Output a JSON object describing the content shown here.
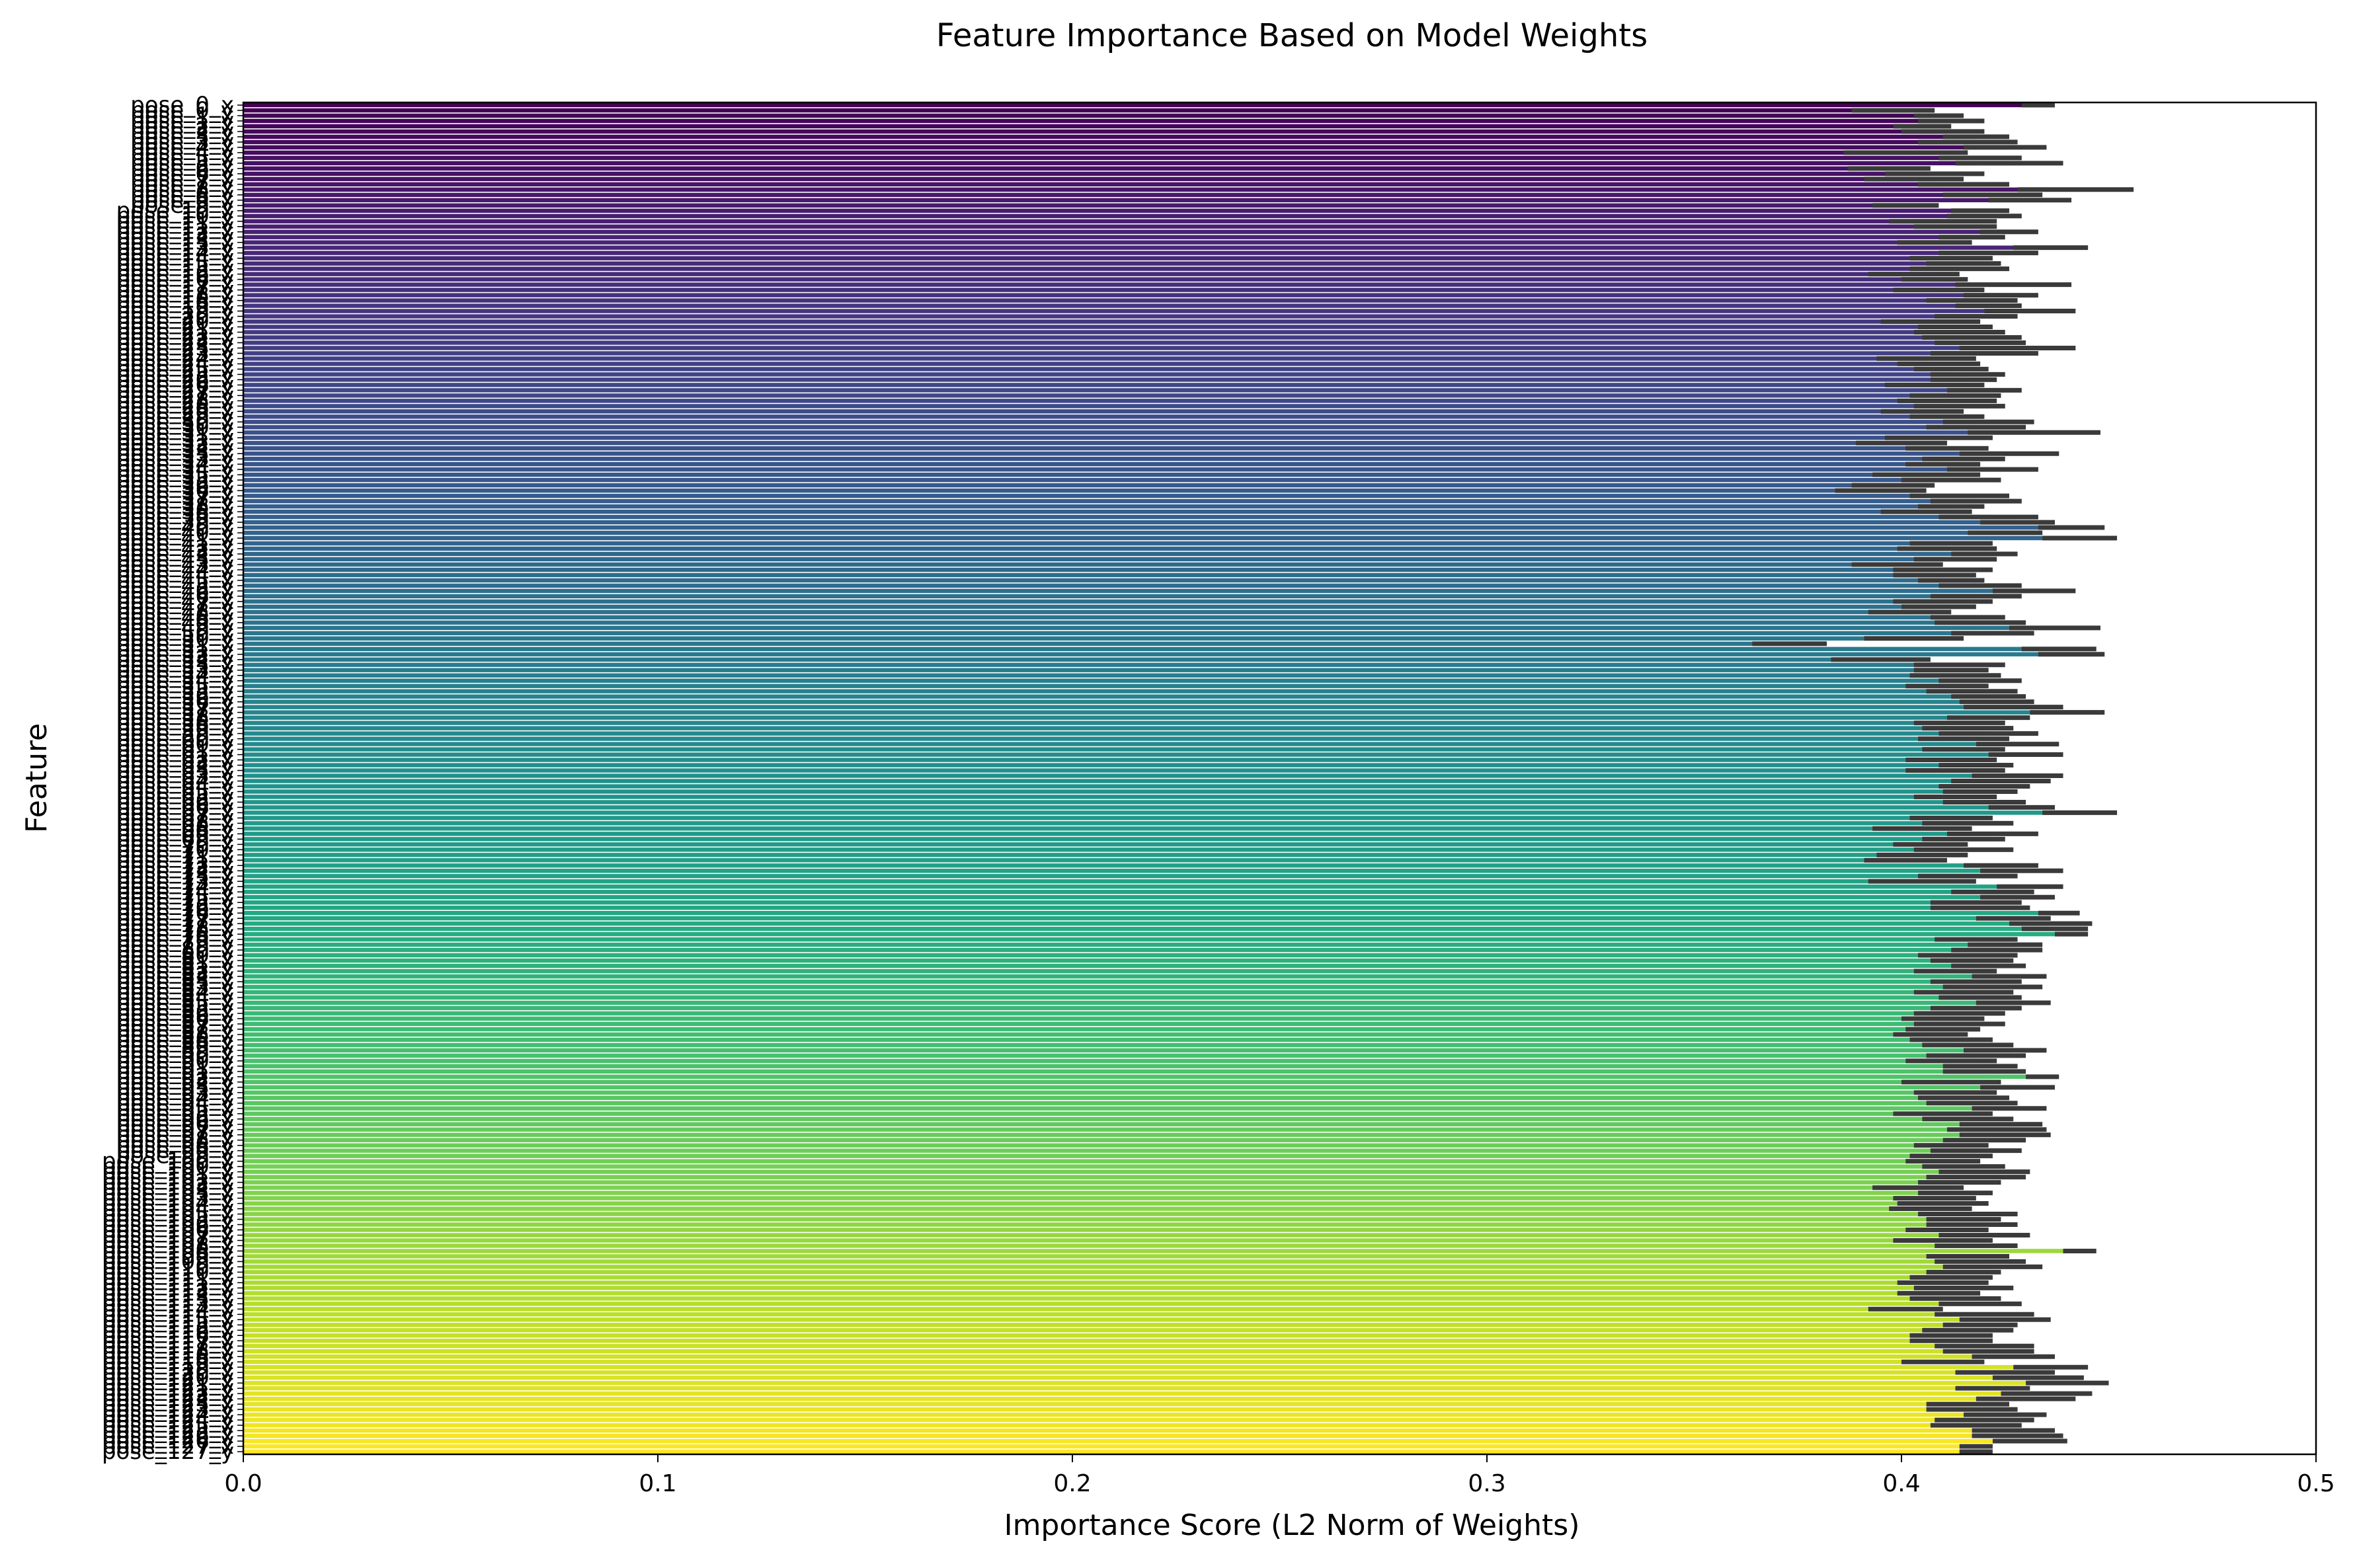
{
  "chart_data": {
    "type": "bar",
    "orientation": "horizontal",
    "title": "Feature Importance Based on Model Weights",
    "xlabel": "Importance Score (L2 Norm of Weights)",
    "ylabel": "Feature",
    "xlim": [
      0.0,
      0.5
    ],
    "xticks": [
      "0.0",
      "0.1",
      "0.2",
      "0.3",
      "0.4",
      "0.5"
    ],
    "grid": false,
    "colormap": "viridis",
    "error_bar_color": "#3a3a3a",
    "categories": [
      "pose_0_x",
      "pose_0_y",
      "pose_1_x",
      "pose_1_y",
      "pose_2_x",
      "pose_2_y",
      "pose_3_x",
      "pose_3_y",
      "pose_4_x",
      "pose_4_y",
      "pose_5_x",
      "pose_5_y",
      "pose_6_x",
      "pose_6_y",
      "pose_7_x",
      "pose_7_y",
      "pose_8_x",
      "pose_8_y",
      "pose_9_x",
      "pose_9_y",
      "pose_10_x",
      "pose_10_y",
      "pose_11_x",
      "pose_11_y",
      "pose_12_x",
      "pose_12_y",
      "pose_13_x",
      "pose_13_y",
      "pose_14_x",
      "pose_14_y",
      "pose_15_x",
      "pose_15_y",
      "pose_16_x",
      "pose_16_y",
      "pose_17_x",
      "pose_17_y",
      "pose_18_x",
      "pose_18_y",
      "pose_19_x",
      "pose_19_y",
      "pose_20_x",
      "pose_20_y",
      "pose_21_x",
      "pose_21_y",
      "pose_22_x",
      "pose_22_y",
      "pose_23_x",
      "pose_23_y",
      "pose_24_x",
      "pose_24_y",
      "pose_25_x",
      "pose_25_y",
      "pose_26_x",
      "pose_26_y",
      "pose_27_x",
      "pose_27_y",
      "pose_28_x",
      "pose_28_y",
      "pose_29_x",
      "pose_29_y",
      "pose_30_x",
      "pose_30_y",
      "pose_31_x",
      "pose_31_y",
      "pose_32_x",
      "pose_32_y",
      "pose_33_x",
      "pose_33_y",
      "pose_34_x",
      "pose_34_y",
      "pose_35_x",
      "pose_35_y",
      "pose_36_x",
      "pose_36_y",
      "pose_37_x",
      "pose_37_y",
      "pose_38_x",
      "pose_38_y",
      "pose_39_x",
      "pose_39_y",
      "pose_40_x",
      "pose_40_y",
      "pose_41_x",
      "pose_41_y",
      "pose_42_x",
      "pose_42_y",
      "pose_43_x",
      "pose_43_y",
      "pose_44_x",
      "pose_44_y",
      "pose_45_x",
      "pose_45_y",
      "pose_46_x",
      "pose_46_y",
      "pose_47_x",
      "pose_47_y",
      "pose_48_x",
      "pose_48_y",
      "pose_49_x",
      "pose_49_y",
      "pose_50_x",
      "pose_50_y",
      "pose_51_x",
      "pose_51_y",
      "pose_52_x",
      "pose_52_y",
      "pose_53_x",
      "pose_53_y",
      "pose_54_x",
      "pose_54_y",
      "pose_55_x",
      "pose_55_y",
      "pose_56_x",
      "pose_56_y",
      "pose_57_x",
      "pose_57_y",
      "pose_58_x",
      "pose_58_y",
      "pose_59_x",
      "pose_59_y",
      "pose_60_x",
      "pose_60_y",
      "pose_61_x",
      "pose_61_y",
      "pose_62_x",
      "pose_62_y",
      "pose_63_x",
      "pose_63_y",
      "pose_64_x",
      "pose_64_y",
      "pose_65_x",
      "pose_65_y",
      "pose_66_x",
      "pose_66_y",
      "pose_67_x",
      "pose_67_y",
      "pose_68_x",
      "pose_68_y",
      "pose_69_x",
      "pose_69_y",
      "pose_70_x",
      "pose_70_y",
      "pose_71_x",
      "pose_71_y",
      "pose_72_x",
      "pose_72_y",
      "pose_73_x",
      "pose_73_y",
      "pose_74_x",
      "pose_74_y",
      "pose_75_x",
      "pose_75_y",
      "pose_76_x",
      "pose_76_y",
      "pose_77_x",
      "pose_77_y",
      "pose_78_x",
      "pose_78_y",
      "pose_79_x",
      "pose_79_y",
      "pose_80_x",
      "pose_80_y",
      "pose_81_x",
      "pose_81_y",
      "pose_82_x",
      "pose_82_y",
      "pose_83_x",
      "pose_83_y",
      "pose_84_x",
      "pose_84_y",
      "pose_85_x",
      "pose_85_y",
      "pose_86_x",
      "pose_86_y",
      "pose_87_x",
      "pose_87_y",
      "pose_88_x",
      "pose_88_y",
      "pose_89_x",
      "pose_89_y",
      "pose_90_x",
      "pose_90_y",
      "pose_91_x",
      "pose_91_y",
      "pose_92_x",
      "pose_92_y",
      "pose_93_x",
      "pose_93_y",
      "pose_94_x",
      "pose_94_y",
      "pose_95_x",
      "pose_95_y",
      "pose_96_x",
      "pose_96_y",
      "pose_97_x",
      "pose_97_y",
      "pose_98_x",
      "pose_98_y",
      "pose_99_x",
      "pose_99_y",
      "pose_100_x",
      "pose_100_y",
      "pose_101_x",
      "pose_101_y",
      "pose_102_x",
      "pose_102_y",
      "pose_103_x",
      "pose_103_y",
      "pose_104_x",
      "pose_104_y",
      "pose_105_x",
      "pose_105_y",
      "pose_106_x",
      "pose_106_y",
      "pose_107_x",
      "pose_107_y",
      "pose_108_x",
      "pose_108_y",
      "pose_109_x",
      "pose_109_y",
      "pose_110_x",
      "pose_110_y",
      "pose_111_x",
      "pose_111_y",
      "pose_112_x",
      "pose_112_y",
      "pose_113_x",
      "pose_113_y",
      "pose_114_x",
      "pose_114_y",
      "pose_115_x",
      "pose_115_y",
      "pose_116_x",
      "pose_116_y",
      "pose_117_x",
      "pose_117_y",
      "pose_118_x",
      "pose_118_y",
      "pose_119_x",
      "pose_119_y",
      "pose_120_x",
      "pose_120_y",
      "pose_121_x",
      "pose_121_y",
      "pose_122_x",
      "pose_122_y",
      "pose_123_x",
      "pose_123_y",
      "pose_124_x",
      "pose_124_y",
      "pose_125_x",
      "pose_125_y",
      "pose_126_x",
      "pose_126_y",
      "pose_127_x",
      "pose_127_y"
    ],
    "values": [
      0.433,
      0.398,
      0.409,
      0.412,
      0.405,
      0.41,
      0.418,
      0.416,
      0.425,
      0.401,
      0.419,
      0.426,
      0.397,
      0.408,
      0.403,
      0.415,
      0.442,
      0.422,
      0.431,
      0.401,
      0.419,
      0.42,
      0.41,
      0.413,
      0.426,
      0.417,
      0.408,
      0.436,
      0.421,
      0.412,
      0.415,
      0.414,
      0.403,
      0.408,
      0.427,
      0.409,
      0.424,
      0.417,
      0.421,
      0.431,
      0.418,
      0.407,
      0.413,
      0.414,
      0.417,
      0.419,
      0.428,
      0.42,
      0.406,
      0.409,
      0.412,
      0.416,
      0.415,
      0.408,
      0.42,
      0.413,
      0.411,
      0.414,
      0.405,
      0.411,
      0.421,
      0.418,
      0.432,
      0.409,
      0.4,
      0.411,
      0.426,
      0.415,
      0.41,
      0.422,
      0.406,
      0.412,
      0.398,
      0.395,
      0.414,
      0.418,
      0.412,
      0.406,
      0.421,
      0.428,
      0.441,
      0.425,
      0.443,
      0.412,
      0.411,
      0.42,
      0.413,
      0.399,
      0.41,
      0.408,
      0.412,
      0.419,
      0.432,
      0.418,
      0.41,
      0.409,
      0.402,
      0.416,
      0.419,
      0.437,
      0.422,
      0.403,
      0.373,
      0.438,
      0.441,
      0.395,
      0.414,
      0.412,
      0.413,
      0.419,
      0.411,
      0.417,
      0.421,
      0.423,
      0.427,
      0.44,
      0.421,
      0.414,
      0.416,
      0.421,
      0.415,
      0.428,
      0.415,
      0.43,
      0.412,
      0.418,
      0.413,
      0.428,
      0.424,
      0.42,
      0.419,
      0.413,
      0.42,
      0.429,
      0.443,
      0.412,
      0.416,
      0.405,
      0.422,
      0.415,
      0.407,
      0.415,
      0.405,
      0.401,
      0.424,
      0.429,
      0.416,
      0.405,
      0.431,
      0.422,
      0.428,
      0.418,
      0.419,
      0.438,
      0.427,
      0.436,
      0.437,
      0.441,
      0.418,
      0.425,
      0.423,
      0.416,
      0.417,
      0.421,
      0.413,
      0.426,
      0.418,
      0.422,
      0.415,
      0.419,
      0.427,
      0.418,
      0.414,
      0.41,
      0.414,
      0.41,
      0.407,
      0.412,
      0.416,
      0.425,
      0.418,
      0.412,
      0.419,
      0.42,
      0.434,
      0.412,
      0.428,
      0.413,
      0.415,
      0.417,
      0.426,
      0.41,
      0.416,
      0.424,
      0.423,
      0.425,
      0.42,
      0.412,
      0.418,
      0.412,
      0.41,
      0.415,
      0.42,
      0.418,
      0.414,
      0.404,
      0.413,
      0.408,
      0.41,
      0.407,
      0.416,
      0.415,
      0.417,
      0.411,
      0.42,
      0.41,
      0.418,
      0.443,
      0.416,
      0.419,
      0.422,
      0.415,
      0.412,
      0.41,
      0.415,
      0.409,
      0.413,
      0.419,
      0.401,
      0.42,
      0.425,
      0.419,
      0.416,
      0.412,
      0.412,
      0.42,
      0.421,
      0.427,
      0.41,
      0.436,
      0.425,
      0.433,
      0.44,
      0.422,
      0.435,
      0.43,
      0.416,
      0.417,
      0.425,
      0.42,
      0.418,
      0.427,
      0.428,
      0.431,
      0.418,
      0.418
    ],
    "errors": [
      0.004,
      0.01,
      0.006,
      0.008,
      0.007,
      0.01,
      0.008,
      0.012,
      0.01,
      0.015,
      0.01,
      0.013,
      0.01,
      0.012,
      0.012,
      0.011,
      0.014,
      0.012,
      0.01,
      0.008,
      0.007,
      0.009,
      0.013,
      0.01,
      0.007,
      0.008,
      0.009,
      0.009,
      0.012,
      0.01,
      0.009,
      0.012,
      0.011,
      0.008,
      0.014,
      0.011,
      0.009,
      0.011,
      0.008,
      0.011,
      0.01,
      0.012,
      0.009,
      0.011,
      0.012,
      0.011,
      0.014,
      0.013,
      0.012,
      0.01,
      0.009,
      0.009,
      0.008,
      0.012,
      0.009,
      0.011,
      0.012,
      0.011,
      0.01,
      0.009,
      0.011,
      0.012,
      0.016,
      0.013,
      0.011,
      0.01,
      0.012,
      0.01,
      0.009,
      0.011,
      0.013,
      0.012,
      0.01,
      0.011,
      0.012,
      0.011,
      0.008,
      0.011,
      0.012,
      0.009,
      0.008,
      0.009,
      0.009,
      0.01,
      0.012,
      0.008,
      0.01,
      0.011,
      0.012,
      0.01,
      0.008,
      0.01,
      0.01,
      0.011,
      0.012,
      0.009,
      0.01,
      0.009,
      0.011,
      0.011,
      0.01,
      0.012,
      0.009,
      0.009,
      0.008,
      0.012,
      0.011,
      0.009,
      0.011,
      0.01,
      0.01,
      0.011,
      0.009,
      0.009,
      0.012,
      0.009,
      0.01,
      0.011,
      0.011,
      0.012,
      0.011,
      0.01,
      0.01,
      0.009,
      0.011,
      0.009,
      0.012,
      0.011,
      0.012,
      0.011,
      0.009,
      0.01,
      0.01,
      0.008,
      0.009,
      0.01,
      0.011,
      0.012,
      0.011,
      0.01,
      0.009,
      0.012,
      0.011,
      0.01,
      0.009,
      0.01,
      0.012,
      0.013,
      0.008,
      0.01,
      0.009,
      0.011,
      0.012,
      0.005,
      0.009,
      0.01,
      0.008,
      0.004,
      0.01,
      0.009,
      0.011,
      0.012,
      0.01,
      0.009,
      0.01,
      0.009,
      0.011,
      0.012,
      0.012,
      0.01,
      0.009,
      0.011,
      0.011,
      0.01,
      0.011,
      0.009,
      0.009,
      0.01,
      0.011,
      0.01,
      0.012,
      0.011,
      0.009,
      0.01,
      0.004,
      0.012,
      0.009,
      0.01,
      0.011,
      0.011,
      0.009,
      0.012,
      0.011,
      0.01,
      0.012,
      0.011,
      0.01,
      0.009,
      0.011,
      0.01,
      0.009,
      0.01,
      0.011,
      0.012,
      0.01,
      0.011,
      0.009,
      0.01,
      0.011,
      0.01,
      0.012,
      0.009,
      0.011,
      0.01,
      0.011,
      0.012,
      0.01,
      0.004,
      0.01,
      0.011,
      0.012,
      0.009,
      0.01,
      0.011,
      0.012,
      0.01,
      0.011,
      0.01,
      0.009,
      0.012,
      0.011,
      0.009,
      0.011,
      0.01,
      0.01,
      0.012,
      0.011,
      0.01,
      0.01,
      0.009,
      0.012,
      0.011,
      0.01,
      0.009,
      0.011,
      0.012,
      0.01,
      0.011,
      0.01,
      0.012,
      0.011,
      0.01,
      0.011,
      0.009,
      0.004,
      0.004
    ]
  }
}
